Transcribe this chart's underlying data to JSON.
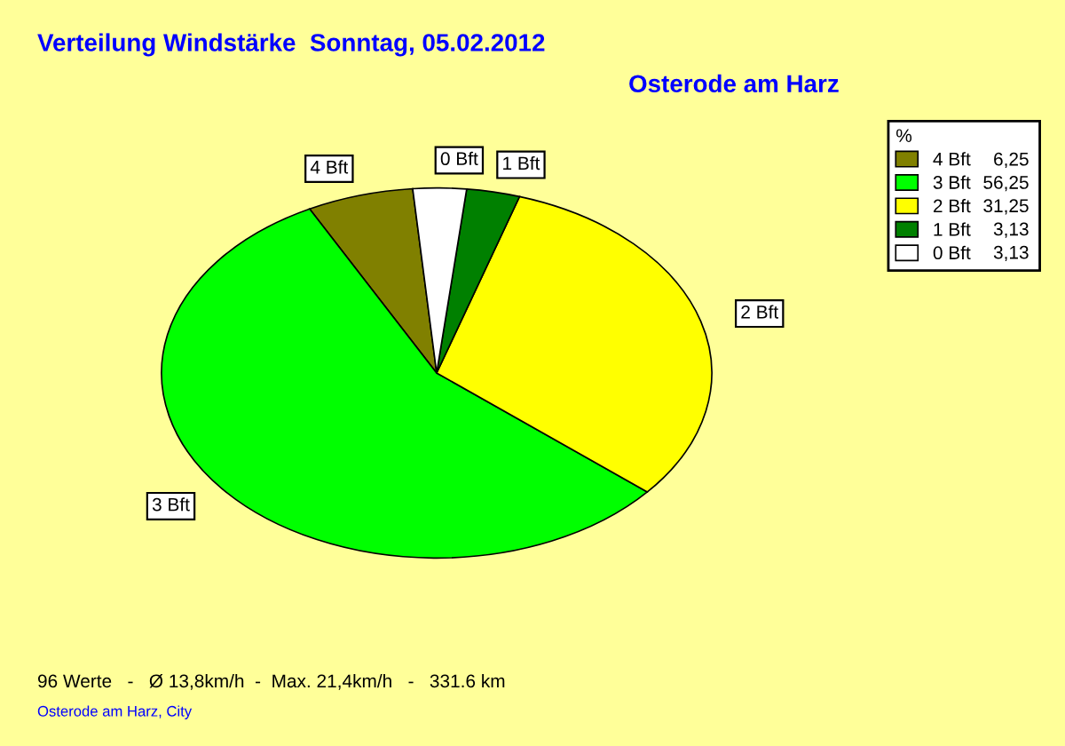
{
  "chart_data": {
    "type": "pie",
    "title": "Verteilung Windstärke  Sonntag, 05.02.2012",
    "subtitle": "Osterode am Harz",
    "categories": [
      "4 Bft",
      "3 Bft",
      "2 Bft",
      "1 Bft",
      "0 Bft"
    ],
    "values": [
      6.25,
      56.25,
      31.25,
      3.13,
      3.13
    ],
    "value_labels": [
      "6,25",
      "56,25",
      "31,25",
      "3,13",
      "3,13"
    ],
    "colors": [
      "#808000",
      "#00ff00",
      "#ffff00",
      "#008000",
      "#ffffff"
    ],
    "legend": "top right",
    "legend_title": "%",
    "annotations": [
      "96 Werte   -   Ø 13,8km/h  -  Max. 21,4km/h   -   331.6 km",
      "Osterode am Harz, City"
    ]
  }
}
